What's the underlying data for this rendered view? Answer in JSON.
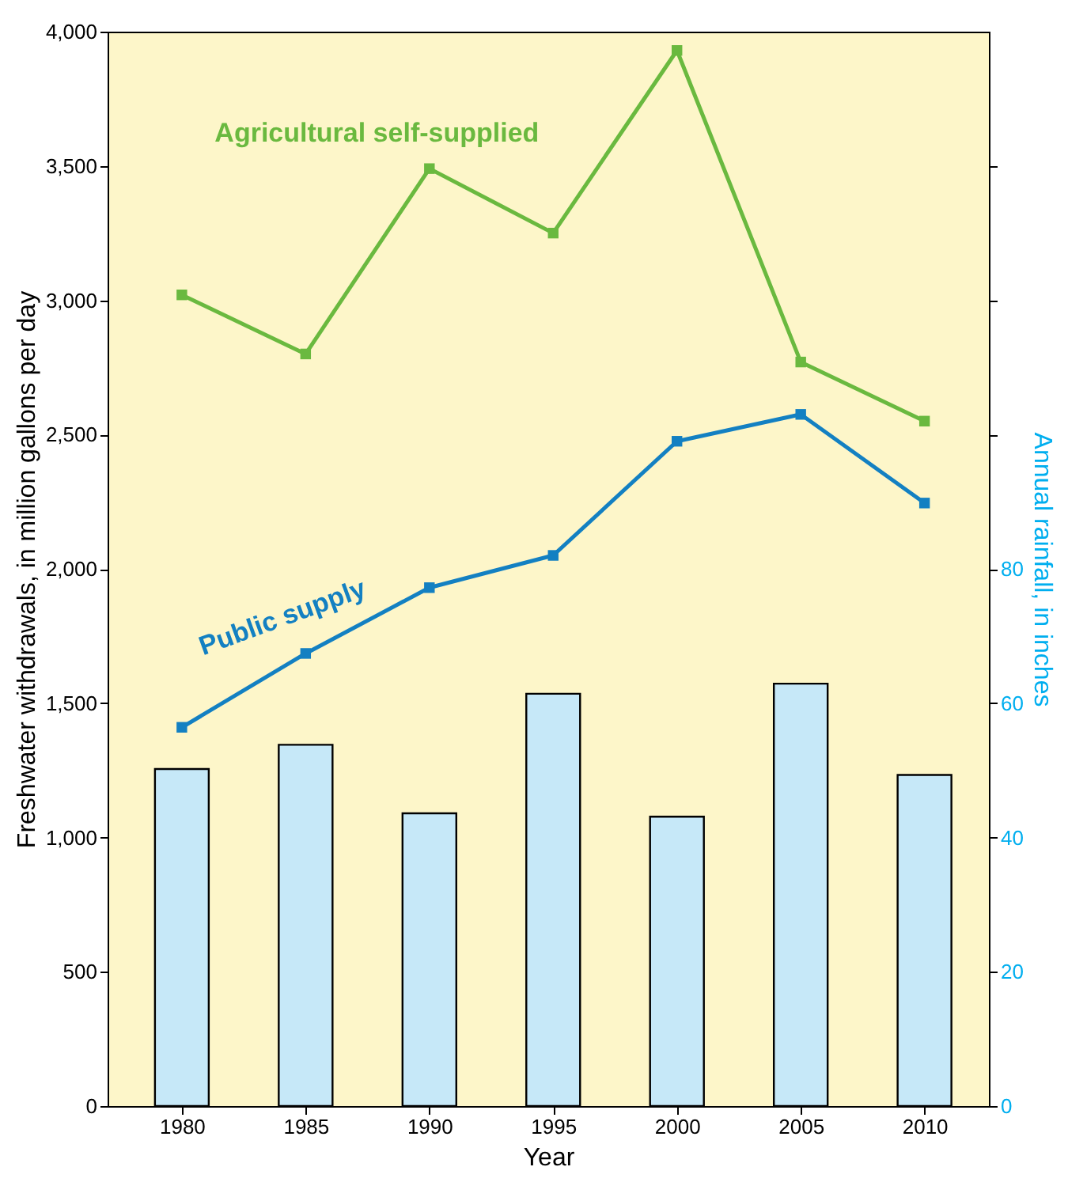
{
  "chart_data": {
    "type": "line",
    "xlabel": "Year",
    "ylabel": "Freshwater withdrawals, in million gallons per day",
    "y2label": "Annual rainfall, in inches",
    "x": [
      1980,
      1985,
      1990,
      1995,
      2000,
      2005,
      2010
    ],
    "xlim": [
      1977,
      2012.6
    ],
    "xticks": [
      1980,
      1985,
      1990,
      1995,
      2000,
      2005,
      2010
    ],
    "ylim": [
      0,
      4000
    ],
    "yticks": [
      0,
      500,
      {
        "value": 1000,
        "label": "1,000"
      },
      {
        "value": 1500,
        "label": "1,500"
      },
      {
        "value": 2000,
        "label": "2,000"
      },
      {
        "value": 2500,
        "label": "2,500"
      },
      {
        "value": 3000,
        "label": "3,000"
      },
      {
        "value": 3500,
        "label": "3,500"
      },
      {
        "value": 4000,
        "label": "4,000"
      }
    ],
    "y2lim": [
      0,
      160
    ],
    "y2ticks": [
      0,
      20,
      40,
      60,
      80,
      {
        "value": 100,
        "label": null
      },
      {
        "value": 120,
        "label": null
      },
      {
        "value": 140,
        "label": null
      }
    ],
    "marker": "square",
    "grid": false,
    "series": [
      {
        "type": "bar",
        "axis": "y2",
        "color": "#c6e8f8",
        "values": [
          50.2,
          53.8,
          43.6,
          61.4,
          43.1,
          62.9,
          49.3
        ]
      },
      {
        "name": "Agricultural self-supplied",
        "color": "#6ab93f",
        "values": [
          3020,
          2800,
          3490,
          3250,
          3930,
          2770,
          2550
        ]
      },
      {
        "name": "Public supply",
        "color": "#1380c2",
        "values": [
          1410,
          1685,
          1930,
          2050,
          2475,
          2575,
          2245
        ]
      }
    ]
  }
}
